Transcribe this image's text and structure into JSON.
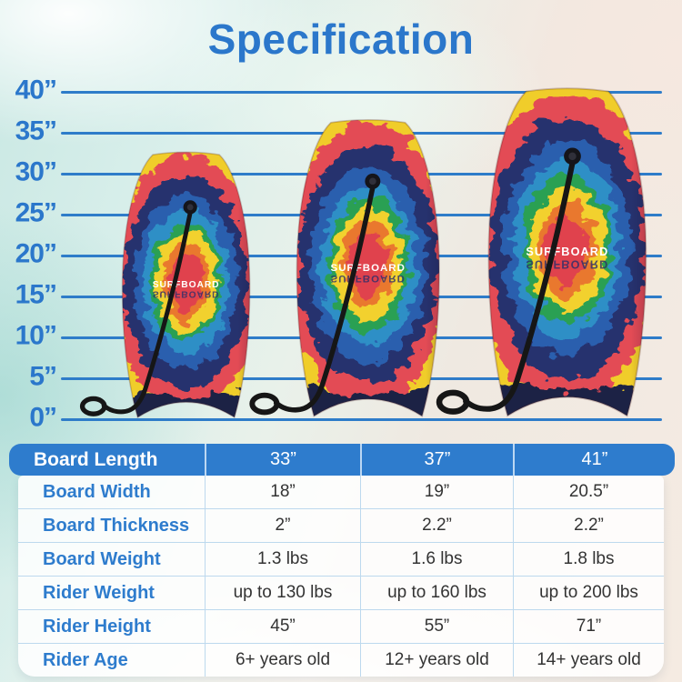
{
  "title": "Specification",
  "ruler": {
    "labels": [
      "40”",
      "35”",
      "30”",
      "25”",
      "20”",
      "15”",
      "10”",
      "5”",
      "0”"
    ]
  },
  "boards": {
    "brand_text": "SURFBOARD"
  },
  "table": {
    "header": {
      "label": "Board Length",
      "values": [
        "33”",
        "37”",
        "41”"
      ]
    },
    "rows": [
      {
        "label": "Board Width",
        "values": [
          "18”",
          "19”",
          "20.5”"
        ]
      },
      {
        "label": "Board Thickness",
        "values": [
          "2”",
          "2.2”",
          "2.2”"
        ]
      },
      {
        "label": "Board Weight",
        "values": [
          "1.3 lbs",
          "1.6 lbs",
          "1.8 lbs"
        ]
      },
      {
        "label": "Rider Weight",
        "values": [
          "up to 130 lbs",
          "up to 160 lbs",
          "up to 200 lbs"
        ]
      },
      {
        "label": "Rider Height",
        "values": [
          "45”",
          "55”",
          "71”"
        ]
      },
      {
        "label": "Rider Age",
        "values": [
          "6+ years old",
          "12+ years old",
          "14+ years old"
        ]
      }
    ]
  },
  "colors": {
    "accent_blue": "#2b77cb",
    "header_blue": "#2e7ccd",
    "line_blue": "#2e7cc9",
    "divider_blue": "#bdd9ee"
  }
}
